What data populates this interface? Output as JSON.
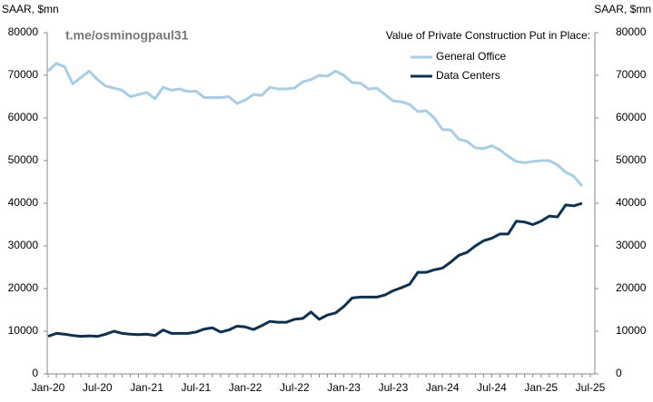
{
  "chart_data": {
    "type": "line",
    "y_label": "SAAR, $mn",
    "y2_label": "SAAR, $mn",
    "annotation": "t.me/osminogpaul31",
    "legend_title": "Value of Private Construction Put in Place:",
    "categories": [
      "Jan-20",
      null,
      null,
      null,
      null,
      null,
      "Jul-20",
      null,
      null,
      null,
      null,
      null,
      "Jan-21",
      null,
      null,
      null,
      null,
      null,
      "Jul-21",
      null,
      null,
      null,
      null,
      null,
      "Jan-22",
      null,
      null,
      null,
      null,
      null,
      "Jul-22",
      null,
      null,
      null,
      null,
      null,
      "Jan-23",
      null,
      null,
      null,
      null,
      null,
      "Jul-23",
      null,
      null,
      null,
      null,
      null,
      "Jan-24",
      null,
      null,
      null,
      null,
      null,
      "Jul-24",
      null,
      null,
      null,
      null,
      null,
      "Jan-25",
      null,
      null,
      null,
      null,
      null,
      "Jul-25"
    ],
    "series": [
      {
        "name": "General Office",
        "color": "#a9cde3",
        "values": [
          71000,
          72800,
          72000,
          68000,
          69500,
          71000,
          69000,
          67500,
          67000,
          66500,
          65000,
          65500,
          66000,
          64500,
          67200,
          66500,
          66800,
          66200,
          66300,
          64800,
          64800,
          64800,
          65000,
          63400,
          64200,
          65500,
          65300,
          67200,
          66800,
          66800,
          67000,
          68500,
          69000,
          70000,
          69800,
          71000,
          70000,
          68300,
          68200,
          66800,
          67000,
          65500,
          64000,
          63800,
          63200,
          61500,
          61700,
          60000,
          57300,
          57200,
          55000,
          54500,
          53000,
          52800,
          53500,
          52500,
          51000,
          49800,
          49500,
          49800,
          50000,
          50000,
          49000,
          47300,
          46300,
          44000,
          null
        ]
      },
      {
        "name": "Data Centers",
        "color": "#0f3150",
        "values": [
          8800,
          9500,
          9300,
          9000,
          8800,
          8900,
          8800,
          9300,
          10000,
          9500,
          9300,
          9200,
          9300,
          9000,
          10300,
          9500,
          9500,
          9500,
          9800,
          10500,
          10800,
          9800,
          10300,
          11200,
          11000,
          10400,
          11300,
          12300,
          12100,
          12100,
          12800,
          13000,
          14500,
          12800,
          13800,
          14300,
          15800,
          17800,
          18000,
          18000,
          18000,
          18500,
          19500,
          20200,
          21000,
          23800,
          23800,
          24400,
          24800,
          26200,
          27800,
          28500,
          30000,
          31200,
          31800,
          32800,
          32800,
          35800,
          35600,
          35000,
          35800,
          37000,
          36800,
          39600,
          39400,
          40000,
          null
        ]
      }
    ],
    "ylim": [
      0,
      80000
    ],
    "yticks": [
      0,
      10000,
      20000,
      30000,
      40000,
      50000,
      60000,
      70000,
      80000
    ],
    "y2lim": [
      0,
      80000
    ],
    "y2ticks": [
      0,
      10000,
      20000,
      30000,
      40000,
      50000,
      60000,
      70000,
      80000
    ],
    "grid": false
  }
}
